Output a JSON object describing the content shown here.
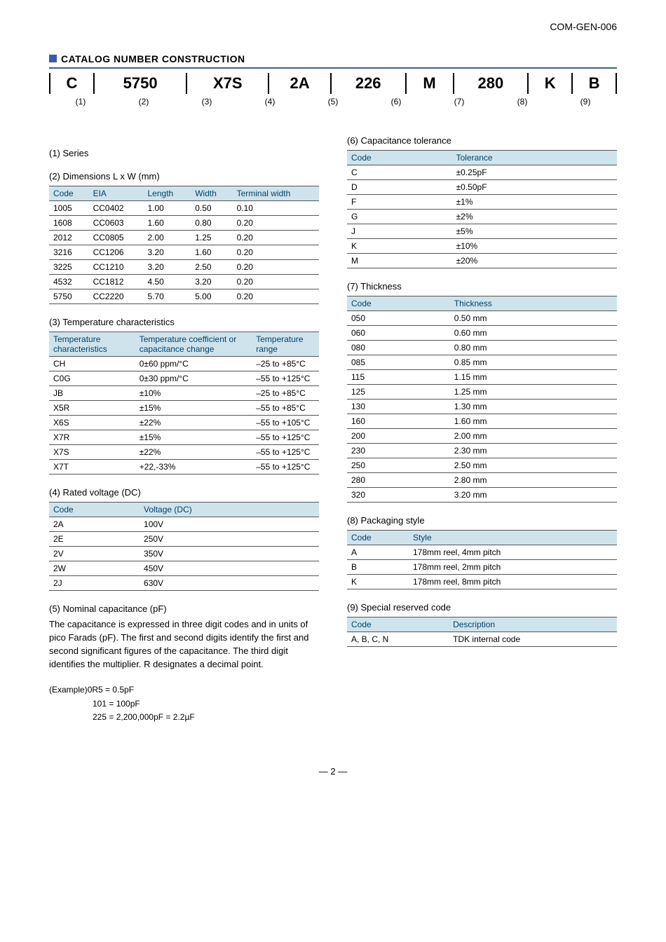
{
  "doc_id": "COM-GEN-006",
  "section_title": "CATALOG NUMBER CONSTRUCTION",
  "catalog": {
    "segments": [
      "C",
      "5750",
      "X7S",
      "2A",
      "226",
      "M",
      "280",
      "K",
      "B"
    ],
    "indices": [
      "(1)",
      "(2)",
      "(3)",
      "(4)",
      "(5)",
      "(6)",
      "(7)",
      "(8)",
      "(9)"
    ]
  },
  "series_heading": "(1) Series",
  "dimensions": {
    "heading": "(2) Dimensions L x W (mm)",
    "columns": [
      "Code",
      "EIA",
      "Length",
      "Width",
      "Terminal width"
    ],
    "rows": [
      [
        "1005",
        "CC0402",
        "1.00",
        "0.50",
        "0.10"
      ],
      [
        "1608",
        "CC0603",
        "1.60",
        "0.80",
        "0.20"
      ],
      [
        "2012",
        "CC0805",
        "2.00",
        "1.25",
        "0.20"
      ],
      [
        "3216",
        "CC1206",
        "3.20",
        "1.60",
        "0.20"
      ],
      [
        "3225",
        "CC1210",
        "3.20",
        "2.50",
        "0.20"
      ],
      [
        "4532",
        "CC1812",
        "4.50",
        "3.20",
        "0.20"
      ],
      [
        "5750",
        "CC2220",
        "5.70",
        "5.00",
        "0.20"
      ]
    ]
  },
  "tempchar": {
    "heading": "(3) Temperature characteristics",
    "columns": [
      "Temperature characteristics",
      "Temperature coefficient or capacitance change",
      "Temperature range"
    ],
    "rows": [
      [
        "CH",
        "0±60 ppm/°C",
        "–25 to +85°C"
      ],
      [
        "C0G",
        "0±30 ppm/°C",
        "–55 to +125°C"
      ],
      [
        "JB",
        "±10%",
        "–25 to +85°C"
      ],
      [
        "X5R",
        "±15%",
        "–55 to +85°C"
      ],
      [
        "X6S",
        "±22%",
        "–55 to +105°C"
      ],
      [
        "X7R",
        "±15%",
        "–55 to +125°C"
      ],
      [
        "X7S",
        "±22%",
        "–55 to +125°C"
      ],
      [
        "X7T",
        "+22,-33%",
        "–55 to +125°C"
      ]
    ]
  },
  "voltage": {
    "heading": "(4) Rated voltage (DC)",
    "columns": [
      "Code",
      "Voltage (DC)"
    ],
    "rows": [
      [
        "2A",
        "100V"
      ],
      [
        "2E",
        "250V"
      ],
      [
        "2V",
        "350V"
      ],
      [
        "2W",
        "450V"
      ],
      [
        "2J",
        "630V"
      ]
    ]
  },
  "nominal": {
    "heading": "(5) Nominal capacitance (pF)",
    "text": "The capacitance is expressed in three digit codes and in units of pico Farads (pF). The first and second digits identify the first and second significant figures of the capacitance. The third digit identifies the multiplier. R designates a decimal point.",
    "example_label": "(Example)",
    "ex1": "0R5 = 0.5pF",
    "ex2": "101 = 100pF",
    "ex3": "225 = 2,200,000pF = 2.2µF"
  },
  "tolerance": {
    "heading": "(6) Capacitance tolerance",
    "columns": [
      "Code",
      "Tolerance"
    ],
    "rows": [
      [
        "C",
        "±0.25pF"
      ],
      [
        "D",
        "±0.50pF"
      ],
      [
        "F",
        "±1%"
      ],
      [
        "G",
        "±2%"
      ],
      [
        "J",
        "±5%"
      ],
      [
        "K",
        "±10%"
      ],
      [
        "M",
        "±20%"
      ]
    ]
  },
  "thickness": {
    "heading": "(7) Thickness",
    "columns": [
      "Code",
      "Thickness"
    ],
    "rows": [
      [
        "050",
        "0.50 mm"
      ],
      [
        "060",
        "0.60 mm"
      ],
      [
        "080",
        "0.80 mm"
      ],
      [
        "085",
        "0.85 mm"
      ],
      [
        "115",
        "1.15 mm"
      ],
      [
        "125",
        "1.25 mm"
      ],
      [
        "130",
        "1.30 mm"
      ],
      [
        "160",
        "1.60 mm"
      ],
      [
        "200",
        "2.00 mm"
      ],
      [
        "230",
        "2.30 mm"
      ],
      [
        "250",
        "2.50 mm"
      ],
      [
        "280",
        "2.80 mm"
      ],
      [
        "320",
        "3.20 mm"
      ]
    ]
  },
  "packaging": {
    "heading": "(8) Packaging style",
    "columns": [
      "Code",
      "Style"
    ],
    "rows": [
      [
        "A",
        "178mm reel, 4mm pitch"
      ],
      [
        "B",
        "178mm reel, 2mm pitch"
      ],
      [
        "K",
        "178mm reel, 8mm pitch"
      ]
    ]
  },
  "reserved": {
    "heading": "(9) Special reserved code",
    "columns": [
      "Code",
      "Description"
    ],
    "rows": [
      [
        "A, B, C, N",
        "TDK internal code"
      ]
    ]
  },
  "page_number": "— 2 —",
  "colors": {
    "accent": "#3a5ba8",
    "table_head_bg": "#cfe3ec",
    "table_head_fg": "#00416a"
  }
}
